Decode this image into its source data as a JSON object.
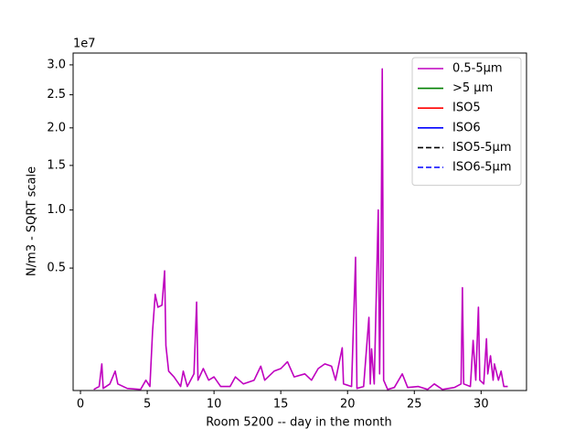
{
  "chart_data": {
    "type": "line",
    "xlabel": "Room 5200 -- day in the month",
    "ylabel": "N/m3 - SQRT scale",
    "y_offset_label": "1e7",
    "yscale": "sqrt",
    "legend": "upper right",
    "x": [
      1.0,
      1.4,
      1.6,
      1.7,
      2.2,
      2.6,
      2.8,
      3.5,
      4.5,
      4.9,
      5.2,
      5.4,
      5.6,
      5.8,
      6.1,
      6.3,
      6.4,
      6.6,
      7.0,
      7.5,
      7.7,
      8.0,
      8.5,
      8.7,
      8.8,
      9.2,
      9.6,
      10.0,
      10.5,
      11.2,
      11.6,
      12.2,
      13.0,
      13.5,
      13.8,
      14.5,
      15.0,
      15.5,
      16.0,
      16.8,
      17.3,
      17.8,
      18.3,
      18.8,
      19.1,
      19.6,
      19.7,
      20.3,
      20.6,
      20.7,
      21.2,
      21.6,
      21.7,
      21.8,
      22.0,
      22.3,
      22.4,
      22.5,
      22.6,
      22.7,
      23.0,
      23.5,
      24.1,
      24.5,
      25.3,
      26.0,
      26.5,
      27.1,
      28.0,
      28.5,
      28.6,
      28.7,
      29.2,
      29.4,
      29.6,
      29.8,
      29.9,
      30.2,
      30.4,
      30.5,
      30.7,
      30.9,
      31.0,
      31.3,
      31.5,
      31.7,
      32.0
    ],
    "series": [
      {
        "name": "0.5-5µm",
        "color": "#bf00bf",
        "linestyle": "solid",
        "values": [
          0.009,
          0.012,
          0.05,
          0.01,
          0.015,
          0.035,
          0.015,
          0.01,
          0.009,
          0.02,
          0.012,
          0.15,
          0.33,
          0.26,
          0.27,
          0.48,
          0.1,
          0.035,
          0.025,
          0.012,
          0.035,
          0.012,
          0.03,
          0.287,
          0.02,
          0.04,
          0.02,
          0.025,
          0.012,
          0.012,
          0.025,
          0.015,
          0.02,
          0.045,
          0.02,
          0.035,
          0.04,
          0.055,
          0.025,
          0.03,
          0.02,
          0.04,
          0.05,
          0.045,
          0.02,
          0.093,
          0.015,
          0.012,
          0.58,
          0.01,
          0.012,
          0.21,
          0.015,
          0.09,
          0.015,
          1.0,
          0.03,
          0.52,
          2.93,
          0.02,
          0.009,
          0.011,
          0.03,
          0.011,
          0.012,
          0.009,
          0.015,
          0.009,
          0.011,
          0.015,
          0.37,
          0.015,
          0.012,
          0.117,
          0.02,
          0.26,
          0.02,
          0.015,
          0.123,
          0.03,
          0.07,
          0.02,
          0.05,
          0.02,
          0.035,
          0.012,
          0.012
        ]
      },
      {
        "name": ">5 µm",
        "color": "#008000",
        "linestyle": "solid",
        "values": [
          null,
          null,
          null,
          null,
          null,
          null,
          null,
          null,
          null,
          null,
          null,
          null,
          null,
          null,
          null,
          null,
          null,
          null,
          null,
          null,
          null,
          null,
          null,
          null,
          null,
          null,
          null,
          null,
          null,
          null,
          null,
          null,
          null,
          null,
          null,
          null,
          null,
          null,
          null,
          null,
          null,
          null,
          null,
          null,
          null,
          null,
          null,
          null,
          null,
          null,
          null,
          null,
          null,
          null,
          null,
          null,
          null,
          null,
          null,
          null,
          null,
          null,
          null,
          null,
          null,
          null,
          null,
          null,
          null,
          null,
          null,
          null,
          null,
          null,
          null,
          null,
          null,
          null,
          null,
          null,
          null,
          null,
          null,
          null,
          null,
          null,
          null
        ]
      },
      {
        "name": "ISO5",
        "color": "#ff0000",
        "linestyle": "solid",
        "values": [
          null,
          null,
          null,
          null,
          null,
          null,
          null,
          null,
          null,
          null,
          null,
          null,
          null,
          null,
          null,
          null,
          null,
          null,
          null,
          null,
          null,
          null,
          null,
          null,
          null,
          null,
          null,
          null,
          null,
          null,
          null,
          null,
          null,
          null,
          null,
          null,
          null,
          null,
          null,
          null,
          null,
          null,
          null,
          null,
          null,
          null,
          null,
          null,
          null,
          null,
          null,
          null,
          null,
          null,
          null,
          null,
          null,
          null,
          null,
          null,
          null,
          null,
          null,
          null,
          null,
          null,
          null,
          null,
          null,
          null,
          null,
          null,
          null,
          null,
          null,
          null,
          null,
          null,
          null,
          null,
          null,
          null,
          null,
          null,
          null,
          null,
          null
        ]
      },
      {
        "name": "ISO6",
        "color": "#0000ff",
        "linestyle": "solid",
        "values": [
          null,
          null,
          null,
          null,
          null,
          null,
          null,
          null,
          null,
          null,
          null,
          null,
          null,
          null,
          null,
          null,
          null,
          null,
          null,
          null,
          null,
          null,
          null,
          null,
          null,
          null,
          null,
          null,
          null,
          null,
          null,
          null,
          null,
          null,
          null,
          null,
          null,
          null,
          null,
          null,
          null,
          null,
          null,
          null,
          null,
          null,
          null,
          null,
          null,
          null,
          null,
          null,
          null,
          null,
          null,
          null,
          null,
          null,
          null,
          null,
          null,
          null,
          null,
          null,
          null,
          null,
          null,
          null,
          null,
          null,
          null,
          null,
          null,
          null,
          null,
          null,
          null,
          null,
          null,
          null,
          null,
          null,
          null,
          null,
          null,
          null,
          null
        ]
      },
      {
        "name": "ISO5-5µm",
        "color": "#000000",
        "linestyle": "dashed",
        "values": [
          null,
          null,
          null,
          null,
          null,
          null,
          null,
          null,
          null,
          null,
          null,
          null,
          null,
          null,
          null,
          null,
          null,
          null,
          null,
          null,
          null,
          null,
          null,
          null,
          null,
          null,
          null,
          null,
          null,
          null,
          null,
          null,
          null,
          null,
          null,
          null,
          null,
          null,
          null,
          null,
          null,
          null,
          null,
          null,
          null,
          null,
          null,
          null,
          null,
          null,
          null,
          null,
          null,
          null,
          null,
          null,
          null,
          null,
          null,
          null,
          null,
          null,
          null,
          null,
          null,
          null,
          null,
          null,
          null,
          null,
          null,
          null,
          null,
          null,
          null,
          null,
          null,
          null,
          null,
          null,
          null,
          null,
          null,
          null,
          null,
          null,
          null
        ]
      },
      {
        "name": "ISO6-5µm",
        "color": "#0000ff",
        "linestyle": "dashed",
        "values": [
          null,
          null,
          null,
          null,
          null,
          null,
          null,
          null,
          null,
          null,
          null,
          null,
          null,
          null,
          null,
          null,
          null,
          null,
          null,
          null,
          null,
          null,
          null,
          null,
          null,
          null,
          null,
          null,
          null,
          null,
          null,
          null,
          null,
          null,
          null,
          null,
          null,
          null,
          null,
          null,
          null,
          null,
          null,
          null,
          null,
          null,
          null,
          null,
          null,
          null,
          null,
          null,
          null,
          null,
          null,
          null,
          null,
          null,
          null,
          null,
          null,
          null,
          null,
          null,
          null,
          null,
          null,
          null,
          null,
          null,
          null,
          null,
          null,
          null,
          null,
          null,
          null,
          null,
          null,
          null,
          null,
          null,
          null,
          null,
          null,
          null,
          null
        ]
      }
    ],
    "xlim": [
      -0.55,
      33.4
    ],
    "xticks": [
      0,
      5,
      10,
      15,
      20,
      25,
      30
    ],
    "ylim": [
      0.008,
      3.21
    ],
    "yticks": [
      0.5,
      {
        "value": 1,
        "label": "1.0"
      },
      1.5,
      {
        "value": 2,
        "label": "2.0"
      },
      2.5,
      {
        "value": 3,
        "label": "3.0"
      }
    ]
  }
}
